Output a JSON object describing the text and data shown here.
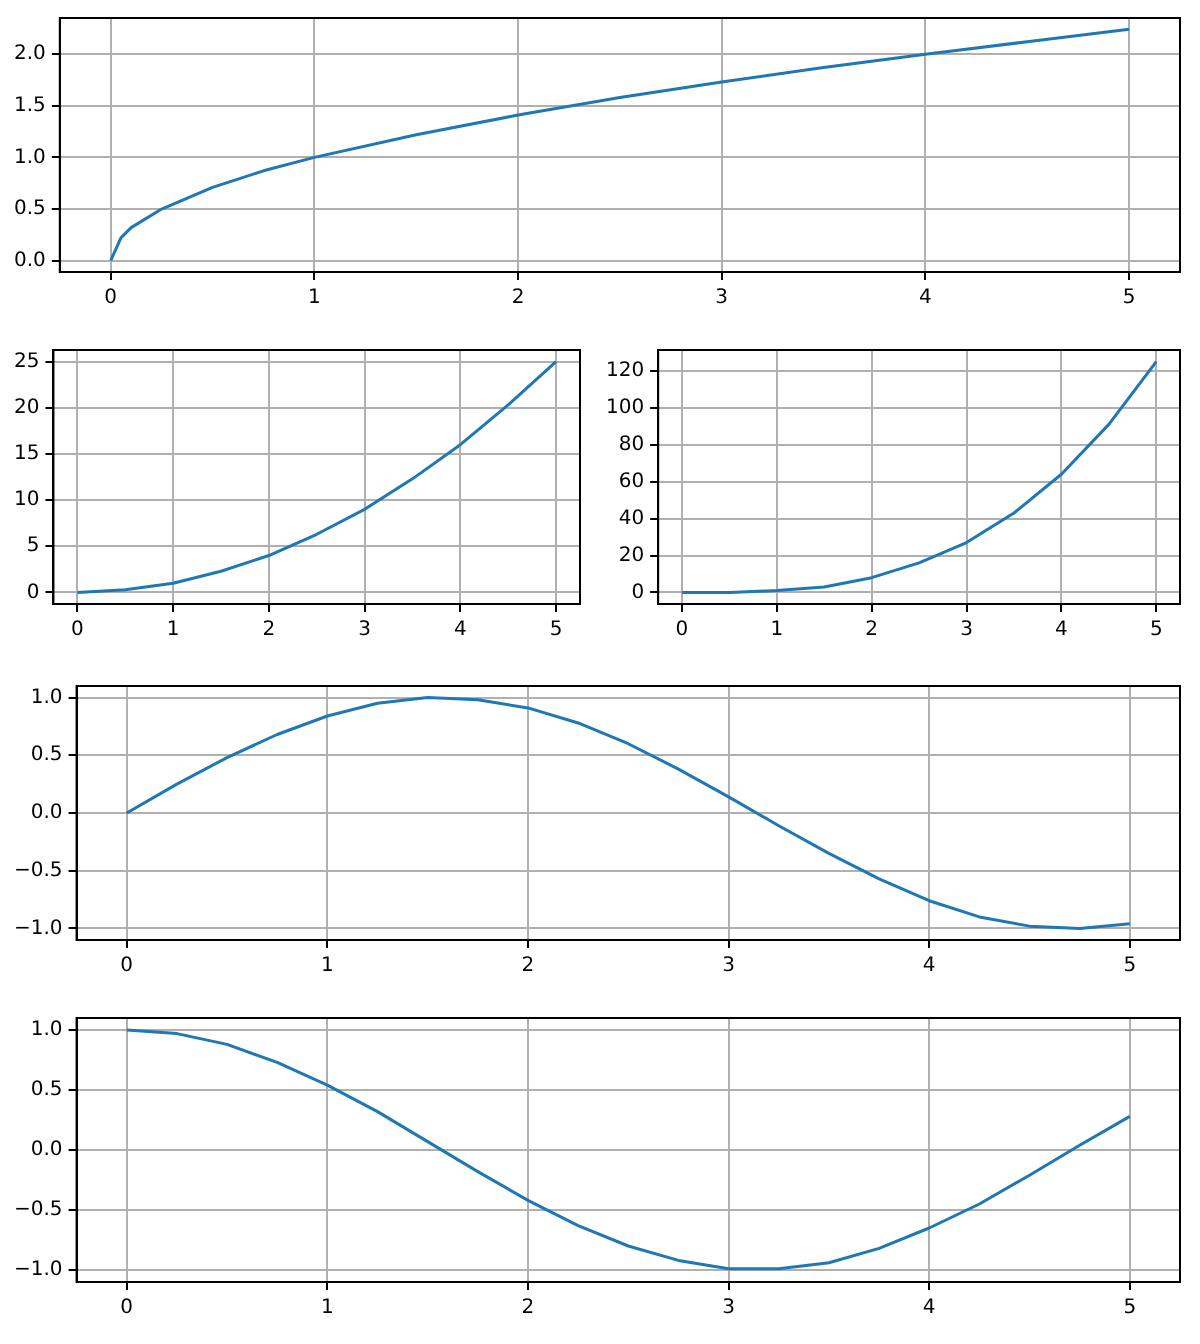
{
  "chart_data": [
    {
      "type": "line",
      "x": [
        0,
        0.05,
        0.1,
        0.25,
        0.5,
        0.75,
        1,
        1.5,
        2,
        2.5,
        3,
        3.5,
        4,
        4.5,
        5
      ],
      "xlim": [
        -0.25,
        5.25
      ],
      "xticks": [
        0,
        1,
        2,
        3,
        4,
        5
      ],
      "ylim": [
        -0.11,
        2.35
      ],
      "yticks": [
        {
          "value": 0,
          "label": "0.0"
        },
        {
          "value": 0.5,
          "label": "0.5"
        },
        {
          "value": 1,
          "label": "1.0"
        },
        {
          "value": 1.5,
          "label": "1.5"
        },
        {
          "value": 2,
          "label": "2.0"
        }
      ],
      "grid": true,
      "series": [
        {
          "color": "#1f77b4",
          "values": [
            0,
            0.22,
            0.32,
            0.5,
            0.71,
            0.87,
            1,
            1.22,
            1.41,
            1.58,
            1.73,
            1.87,
            2,
            2.12,
            2.24
          ]
        }
      ]
    },
    {
      "type": "line",
      "x": [
        0,
        0.5,
        1,
        1.5,
        2,
        2.5,
        3,
        3.5,
        4,
        4.5,
        5
      ],
      "xlim": [
        -0.25,
        5.25
      ],
      "xticks": [
        0,
        1,
        2,
        3,
        4,
        5
      ],
      "ylim": [
        -1.25,
        26.25
      ],
      "yticks": [
        0,
        5,
        10,
        15,
        20,
        25
      ],
      "grid": true,
      "series": [
        {
          "color": "#1f77b4",
          "values": [
            0,
            0.3,
            1,
            2.3,
            4,
            6.3,
            9,
            12.3,
            16,
            20.3,
            25
          ]
        }
      ]
    },
    {
      "type": "line",
      "x": [
        0,
        0.5,
        1,
        1.5,
        2,
        2.5,
        3,
        3.5,
        4,
        4.5,
        5
      ],
      "xlim": [
        -0.25,
        5.25
      ],
      "xticks": [
        0,
        1,
        2,
        3,
        4,
        5
      ],
      "ylim": [
        -6.25,
        131.25
      ],
      "yticks": [
        0,
        20,
        40,
        60,
        80,
        100,
        120
      ],
      "grid": true,
      "series": [
        {
          "color": "#1f77b4",
          "values": [
            0,
            0,
            1,
            3,
            8,
            16,
            27,
            43,
            64,
            91,
            125
          ]
        }
      ]
    },
    {
      "type": "line",
      "x": [
        0,
        0.25,
        0.5,
        0.75,
        1,
        1.25,
        1.5,
        1.75,
        2,
        2.25,
        2.5,
        2.75,
        3,
        3.25,
        3.5,
        3.75,
        4,
        4.25,
        4.5,
        4.75,
        5
      ],
      "xlim": [
        -0.25,
        5.25
      ],
      "xticks": [
        0,
        1,
        2,
        3,
        4,
        5
      ],
      "ylim": [
        -1.1,
        1.1
      ],
      "yticks": [
        {
          "value": -1,
          "label": "−1.0"
        },
        {
          "value": -0.5,
          "label": "−0.5"
        },
        {
          "value": 0,
          "label": "0.0"
        },
        {
          "value": 0.5,
          "label": "0.5"
        },
        {
          "value": 1,
          "label": "1.0"
        }
      ],
      "grid": true,
      "series": [
        {
          "color": "#1f77b4",
          "values": [
            0,
            0.25,
            0.48,
            0.68,
            0.84,
            0.95,
            1,
            0.98,
            0.91,
            0.78,
            0.6,
            0.38,
            0.14,
            -0.11,
            -0.35,
            -0.57,
            -0.76,
            -0.9,
            -0.98,
            -1,
            -0.96
          ]
        }
      ]
    },
    {
      "type": "line",
      "x": [
        0,
        0.25,
        0.5,
        0.75,
        1,
        1.25,
        1.5,
        1.75,
        2,
        2.25,
        2.5,
        2.75,
        3,
        3.25,
        3.5,
        3.75,
        4,
        4.25,
        4.5,
        4.75,
        5
      ],
      "xlim": [
        -0.25,
        5.25
      ],
      "xticks": [
        0,
        1,
        2,
        3,
        4,
        5
      ],
      "ylim": [
        -1.1,
        1.1
      ],
      "yticks": [
        {
          "value": -1,
          "label": "−1.0"
        },
        {
          "value": -0.5,
          "label": "−0.5"
        },
        {
          "value": 0,
          "label": "0.0"
        },
        {
          "value": 0.5,
          "label": "0.5"
        },
        {
          "value": 1,
          "label": "1.0"
        }
      ],
      "grid": true,
      "series": [
        {
          "color": "#1f77b4",
          "values": [
            1,
            0.97,
            0.88,
            0.73,
            0.54,
            0.32,
            0.07,
            -0.18,
            -0.42,
            -0.63,
            -0.8,
            -0.92,
            -0.99,
            -0.99,
            -0.94,
            -0.82,
            -0.65,
            -0.45,
            -0.21,
            0.04,
            0.28
          ]
        }
      ]
    }
  ]
}
